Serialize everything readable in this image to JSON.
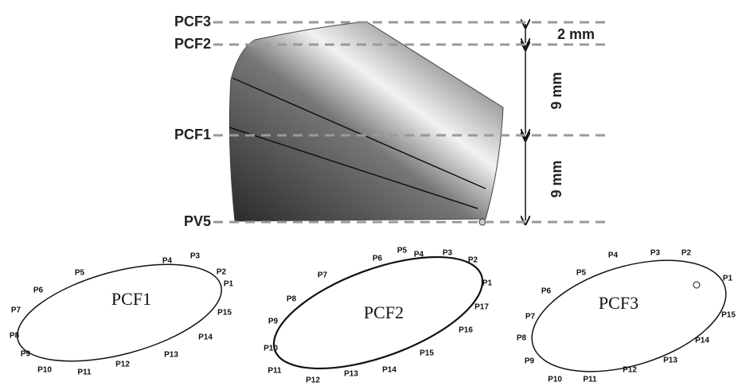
{
  "profile": {
    "levels": [
      "PCF3",
      "PCF2",
      "PCF1",
      "PV5"
    ],
    "dimensions": [
      "2 mm",
      "9 mm",
      "9 mm"
    ]
  },
  "sections": [
    {
      "title": "PCF1",
      "points": [
        "P1",
        "P2",
        "P3",
        "P4",
        "P5",
        "P6",
        "P7",
        "P8",
        "P9",
        "P10",
        "P11",
        "P12",
        "P13",
        "P14",
        "P15"
      ]
    },
    {
      "title": "PCF2",
      "points": [
        "P1",
        "P2",
        "P3",
        "P4",
        "P5",
        "P6",
        "P7",
        "P8",
        "P9",
        "P10",
        "P11",
        "P12",
        "P13",
        "P14",
        "P15",
        "P16",
        "P17"
      ]
    },
    {
      "title": "PCF3",
      "points": [
        "P1",
        "P2",
        "P3",
        "P4",
        "P5",
        "P6",
        "P7",
        "P8",
        "P9",
        "P10",
        "P11",
        "P12",
        "P13",
        "P14",
        "P15"
      ]
    }
  ]
}
